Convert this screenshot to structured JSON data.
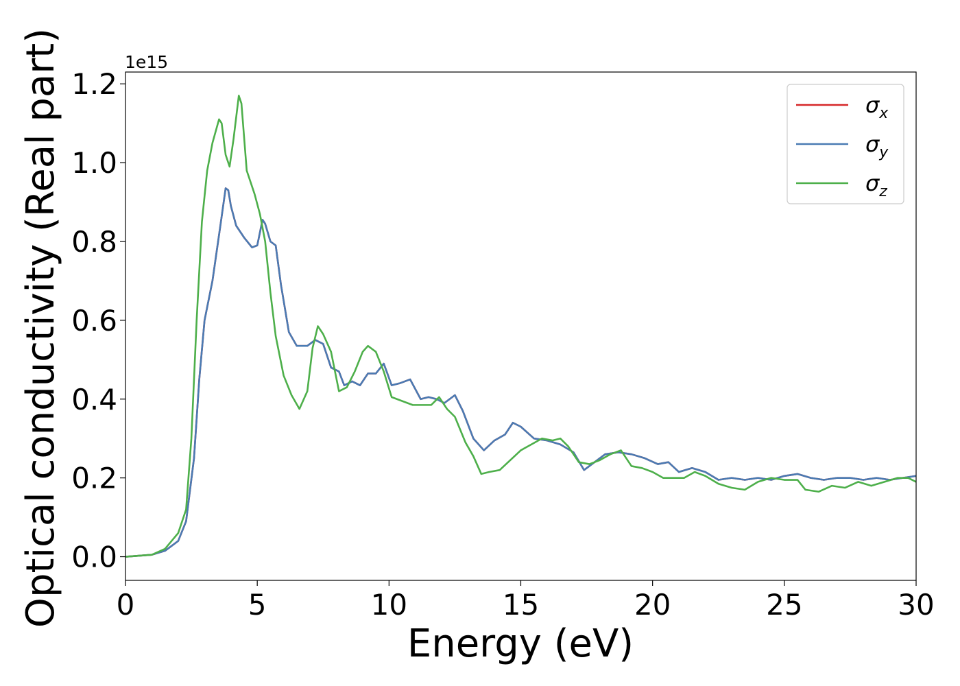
{
  "chart_data": {
    "type": "line",
    "title": "",
    "xlabel": "Energy (eV)",
    "ylabel": "Optical conductivity (Real part)",
    "y_multiplier_label": "1e15",
    "xlim": [
      0,
      30
    ],
    "ylim": [
      -0.06,
      1.23
    ],
    "x_ticks": [
      0,
      5,
      10,
      15,
      20,
      25,
      30
    ],
    "x_tick_labels": [
      "0",
      "5",
      "10",
      "15",
      "20",
      "25",
      "30"
    ],
    "y_ticks": [
      0.0,
      0.2,
      0.4,
      0.6,
      0.8,
      1.0,
      1.2
    ],
    "y_tick_labels": [
      "0.0",
      "0.2",
      "0.4",
      "0.6",
      "0.8",
      "1.0",
      "1.2"
    ],
    "grid": false,
    "legend_position": "top-right",
    "series": [
      {
        "name": "σx",
        "legend_base": "σ",
        "legend_sub": "x",
        "color": "#d62728",
        "points": [
          [
            0,
            0.0
          ],
          [
            1,
            0.005
          ],
          [
            1.5,
            0.015
          ],
          [
            2,
            0.04
          ],
          [
            2.3,
            0.09
          ],
          [
            2.6,
            0.25
          ],
          [
            2.8,
            0.45
          ],
          [
            3,
            0.6
          ],
          [
            3.3,
            0.7
          ],
          [
            3.6,
            0.84
          ],
          [
            3.8,
            0.935
          ],
          [
            3.9,
            0.93
          ],
          [
            4,
            0.89
          ],
          [
            4.2,
            0.84
          ],
          [
            4.5,
            0.81
          ],
          [
            4.8,
            0.785
          ],
          [
            5,
            0.79
          ],
          [
            5.2,
            0.855
          ],
          [
            5.3,
            0.845
          ],
          [
            5.5,
            0.8
          ],
          [
            5.7,
            0.79
          ],
          [
            5.9,
            0.69
          ],
          [
            6.2,
            0.57
          ],
          [
            6.5,
            0.535
          ],
          [
            6.9,
            0.535
          ],
          [
            7.2,
            0.55
          ],
          [
            7.5,
            0.54
          ],
          [
            7.8,
            0.48
          ],
          [
            8.1,
            0.47
          ],
          [
            8.3,
            0.435
          ],
          [
            8.6,
            0.445
          ],
          [
            8.9,
            0.435
          ],
          [
            9.2,
            0.465
          ],
          [
            9.5,
            0.465
          ],
          [
            9.8,
            0.49
          ],
          [
            10.1,
            0.435
          ],
          [
            10.4,
            0.44
          ],
          [
            10.8,
            0.45
          ],
          [
            11.2,
            0.4
          ],
          [
            11.5,
            0.405
          ],
          [
            11.8,
            0.4
          ],
          [
            12.1,
            0.39
          ],
          [
            12.5,
            0.41
          ],
          [
            12.8,
            0.37
          ],
          [
            13.2,
            0.3
          ],
          [
            13.6,
            0.27
          ],
          [
            14,
            0.295
          ],
          [
            14.4,
            0.31
          ],
          [
            14.7,
            0.34
          ],
          [
            15,
            0.33
          ],
          [
            15.5,
            0.3
          ],
          [
            16,
            0.295
          ],
          [
            16.5,
            0.285
          ],
          [
            17,
            0.265
          ],
          [
            17.4,
            0.22
          ],
          [
            17.8,
            0.24
          ],
          [
            18.2,
            0.26
          ],
          [
            18.7,
            0.265
          ],
          [
            19.2,
            0.26
          ],
          [
            19.7,
            0.25
          ],
          [
            20.2,
            0.235
          ],
          [
            20.6,
            0.24
          ],
          [
            21,
            0.215
          ],
          [
            21.5,
            0.225
          ],
          [
            22,
            0.215
          ],
          [
            22.5,
            0.195
          ],
          [
            23,
            0.2
          ],
          [
            23.5,
            0.195
          ],
          [
            24,
            0.2
          ],
          [
            24.5,
            0.195
          ],
          [
            25,
            0.205
          ],
          [
            25.5,
            0.21
          ],
          [
            26,
            0.2
          ],
          [
            26.5,
            0.195
          ],
          [
            27,
            0.2
          ],
          [
            27.5,
            0.2
          ],
          [
            28,
            0.195
          ],
          [
            28.5,
            0.2
          ],
          [
            29,
            0.195
          ],
          [
            29.5,
            0.2
          ],
          [
            30,
            0.205
          ]
        ]
      },
      {
        "name": "σy",
        "legend_base": "σ",
        "legend_sub": "y",
        "color": "#4a7bb3",
        "points": [
          [
            0,
            0.0
          ],
          [
            1,
            0.005
          ],
          [
            1.5,
            0.015
          ],
          [
            2,
            0.04
          ],
          [
            2.3,
            0.09
          ],
          [
            2.6,
            0.25
          ],
          [
            2.8,
            0.45
          ],
          [
            3,
            0.6
          ],
          [
            3.3,
            0.7
          ],
          [
            3.6,
            0.84
          ],
          [
            3.8,
            0.935
          ],
          [
            3.9,
            0.93
          ],
          [
            4,
            0.89
          ],
          [
            4.2,
            0.84
          ],
          [
            4.5,
            0.81
          ],
          [
            4.8,
            0.785
          ],
          [
            5,
            0.79
          ],
          [
            5.2,
            0.855
          ],
          [
            5.3,
            0.845
          ],
          [
            5.5,
            0.8
          ],
          [
            5.7,
            0.79
          ],
          [
            5.9,
            0.69
          ],
          [
            6.2,
            0.57
          ],
          [
            6.5,
            0.535
          ],
          [
            6.9,
            0.535
          ],
          [
            7.2,
            0.55
          ],
          [
            7.5,
            0.54
          ],
          [
            7.8,
            0.48
          ],
          [
            8.1,
            0.47
          ],
          [
            8.3,
            0.435
          ],
          [
            8.6,
            0.445
          ],
          [
            8.9,
            0.435
          ],
          [
            9.2,
            0.465
          ],
          [
            9.5,
            0.465
          ],
          [
            9.8,
            0.49
          ],
          [
            10.1,
            0.435
          ],
          [
            10.4,
            0.44
          ],
          [
            10.8,
            0.45
          ],
          [
            11.2,
            0.4
          ],
          [
            11.5,
            0.405
          ],
          [
            11.8,
            0.4
          ],
          [
            12.1,
            0.39
          ],
          [
            12.5,
            0.41
          ],
          [
            12.8,
            0.37
          ],
          [
            13.2,
            0.3
          ],
          [
            13.6,
            0.27
          ],
          [
            14,
            0.295
          ],
          [
            14.4,
            0.31
          ],
          [
            14.7,
            0.34
          ],
          [
            15,
            0.33
          ],
          [
            15.5,
            0.3
          ],
          [
            16,
            0.295
          ],
          [
            16.5,
            0.285
          ],
          [
            17,
            0.265
          ],
          [
            17.4,
            0.22
          ],
          [
            17.8,
            0.24
          ],
          [
            18.2,
            0.26
          ],
          [
            18.7,
            0.265
          ],
          [
            19.2,
            0.26
          ],
          [
            19.7,
            0.25
          ],
          [
            20.2,
            0.235
          ],
          [
            20.6,
            0.24
          ],
          [
            21,
            0.215
          ],
          [
            21.5,
            0.225
          ],
          [
            22,
            0.215
          ],
          [
            22.5,
            0.195
          ],
          [
            23,
            0.2
          ],
          [
            23.5,
            0.195
          ],
          [
            24,
            0.2
          ],
          [
            24.5,
            0.195
          ],
          [
            25,
            0.205
          ],
          [
            25.5,
            0.21
          ],
          [
            26,
            0.2
          ],
          [
            26.5,
            0.195
          ],
          [
            27,
            0.2
          ],
          [
            27.5,
            0.2
          ],
          [
            28,
            0.195
          ],
          [
            28.5,
            0.2
          ],
          [
            29,
            0.195
          ],
          [
            29.5,
            0.2
          ],
          [
            30,
            0.205
          ]
        ]
      },
      {
        "name": "σz",
        "legend_base": "σ",
        "legend_sub": "z",
        "color": "#4daf4a",
        "points": [
          [
            0,
            0.0
          ],
          [
            1,
            0.005
          ],
          [
            1.5,
            0.02
          ],
          [
            2,
            0.06
          ],
          [
            2.3,
            0.12
          ],
          [
            2.5,
            0.3
          ],
          [
            2.7,
            0.6
          ],
          [
            2.9,
            0.85
          ],
          [
            3.1,
            0.98
          ],
          [
            3.3,
            1.05
          ],
          [
            3.55,
            1.11
          ],
          [
            3.65,
            1.1
          ],
          [
            3.8,
            1.02
          ],
          [
            3.95,
            0.99
          ],
          [
            4.1,
            1.06
          ],
          [
            4.3,
            1.17
          ],
          [
            4.4,
            1.15
          ],
          [
            4.6,
            0.98
          ],
          [
            4.9,
            0.92
          ],
          [
            5.1,
            0.87
          ],
          [
            5.3,
            0.8
          ],
          [
            5.5,
            0.67
          ],
          [
            5.7,
            0.56
          ],
          [
            6,
            0.46
          ],
          [
            6.3,
            0.41
          ],
          [
            6.6,
            0.375
          ],
          [
            6.9,
            0.42
          ],
          [
            7.1,
            0.53
          ],
          [
            7.3,
            0.585
          ],
          [
            7.5,
            0.565
          ],
          [
            7.8,
            0.52
          ],
          [
            8.1,
            0.42
          ],
          [
            8.4,
            0.43
          ],
          [
            8.7,
            0.47
          ],
          [
            9,
            0.52
          ],
          [
            9.2,
            0.535
          ],
          [
            9.5,
            0.52
          ],
          [
            9.8,
            0.47
          ],
          [
            10.1,
            0.405
          ],
          [
            10.5,
            0.395
          ],
          [
            10.9,
            0.385
          ],
          [
            11.3,
            0.385
          ],
          [
            11.6,
            0.385
          ],
          [
            11.9,
            0.405
          ],
          [
            12.2,
            0.375
          ],
          [
            12.5,
            0.355
          ],
          [
            12.9,
            0.29
          ],
          [
            13.2,
            0.255
          ],
          [
            13.5,
            0.21
          ],
          [
            13.8,
            0.215
          ],
          [
            14.2,
            0.22
          ],
          [
            14.6,
            0.245
          ],
          [
            15,
            0.27
          ],
          [
            15.4,
            0.285
          ],
          [
            15.8,
            0.3
          ],
          [
            16.2,
            0.295
          ],
          [
            16.5,
            0.3
          ],
          [
            16.8,
            0.28
          ],
          [
            17.2,
            0.24
          ],
          [
            17.6,
            0.235
          ],
          [
            18,
            0.245
          ],
          [
            18.4,
            0.26
          ],
          [
            18.8,
            0.27
          ],
          [
            19.2,
            0.23
          ],
          [
            19.6,
            0.225
          ],
          [
            20,
            0.215
          ],
          [
            20.4,
            0.2
          ],
          [
            20.8,
            0.2
          ],
          [
            21.2,
            0.2
          ],
          [
            21.6,
            0.215
          ],
          [
            22,
            0.205
          ],
          [
            22.5,
            0.185
          ],
          [
            23,
            0.175
          ],
          [
            23.5,
            0.17
          ],
          [
            24,
            0.19
          ],
          [
            24.5,
            0.2
          ],
          [
            25,
            0.195
          ],
          [
            25.5,
            0.195
          ],
          [
            25.8,
            0.17
          ],
          [
            26.3,
            0.165
          ],
          [
            26.8,
            0.18
          ],
          [
            27.3,
            0.175
          ],
          [
            27.8,
            0.19
          ],
          [
            28.3,
            0.18
          ],
          [
            28.8,
            0.19
          ],
          [
            29.3,
            0.2
          ],
          [
            29.7,
            0.2
          ],
          [
            30,
            0.19
          ]
        ]
      }
    ]
  }
}
